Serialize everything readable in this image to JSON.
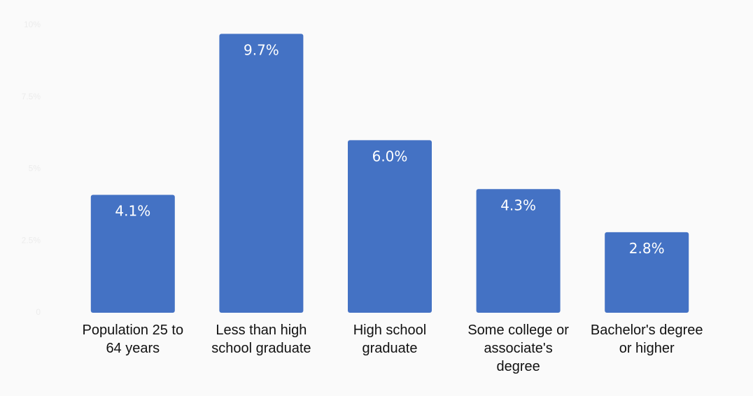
{
  "chart_data": {
    "type": "bar",
    "categories": [
      "Population 25 to 64 years",
      "Less than high school graduate",
      "High school graduate",
      "Some college or associate's degree",
      "Bachelor's degree or higher"
    ],
    "category_lines": [
      [
        "Population 25 to",
        "64 years"
      ],
      [
        "Less than high",
        "school graduate"
      ],
      [
        "High school",
        "graduate"
      ],
      [
        "Some college or",
        "associate's",
        "degree"
      ],
      [
        "Bachelor's degree",
        "or higher"
      ]
    ],
    "values": [
      4.1,
      9.7,
      6.0,
      4.3,
      2.8
    ],
    "data_labels": [
      "4.1%",
      "9.7%",
      "6.0%",
      "4.3%",
      "2.8%"
    ],
    "y_ticks": [
      0,
      2.5,
      5,
      7.5,
      10
    ],
    "y_tick_labels": [
      "0",
      "2.5%",
      "5%",
      "7.5%",
      "10%"
    ],
    "ylim": [
      0,
      10
    ],
    "title": "",
    "xlabel": "",
    "ylabel": "",
    "grid": false,
    "colors": {
      "bar": "#4472c4",
      "data_label": "#ffffff",
      "tick_label": "#ececec",
      "category_label": "#111111",
      "background": "#fafafa"
    }
  }
}
